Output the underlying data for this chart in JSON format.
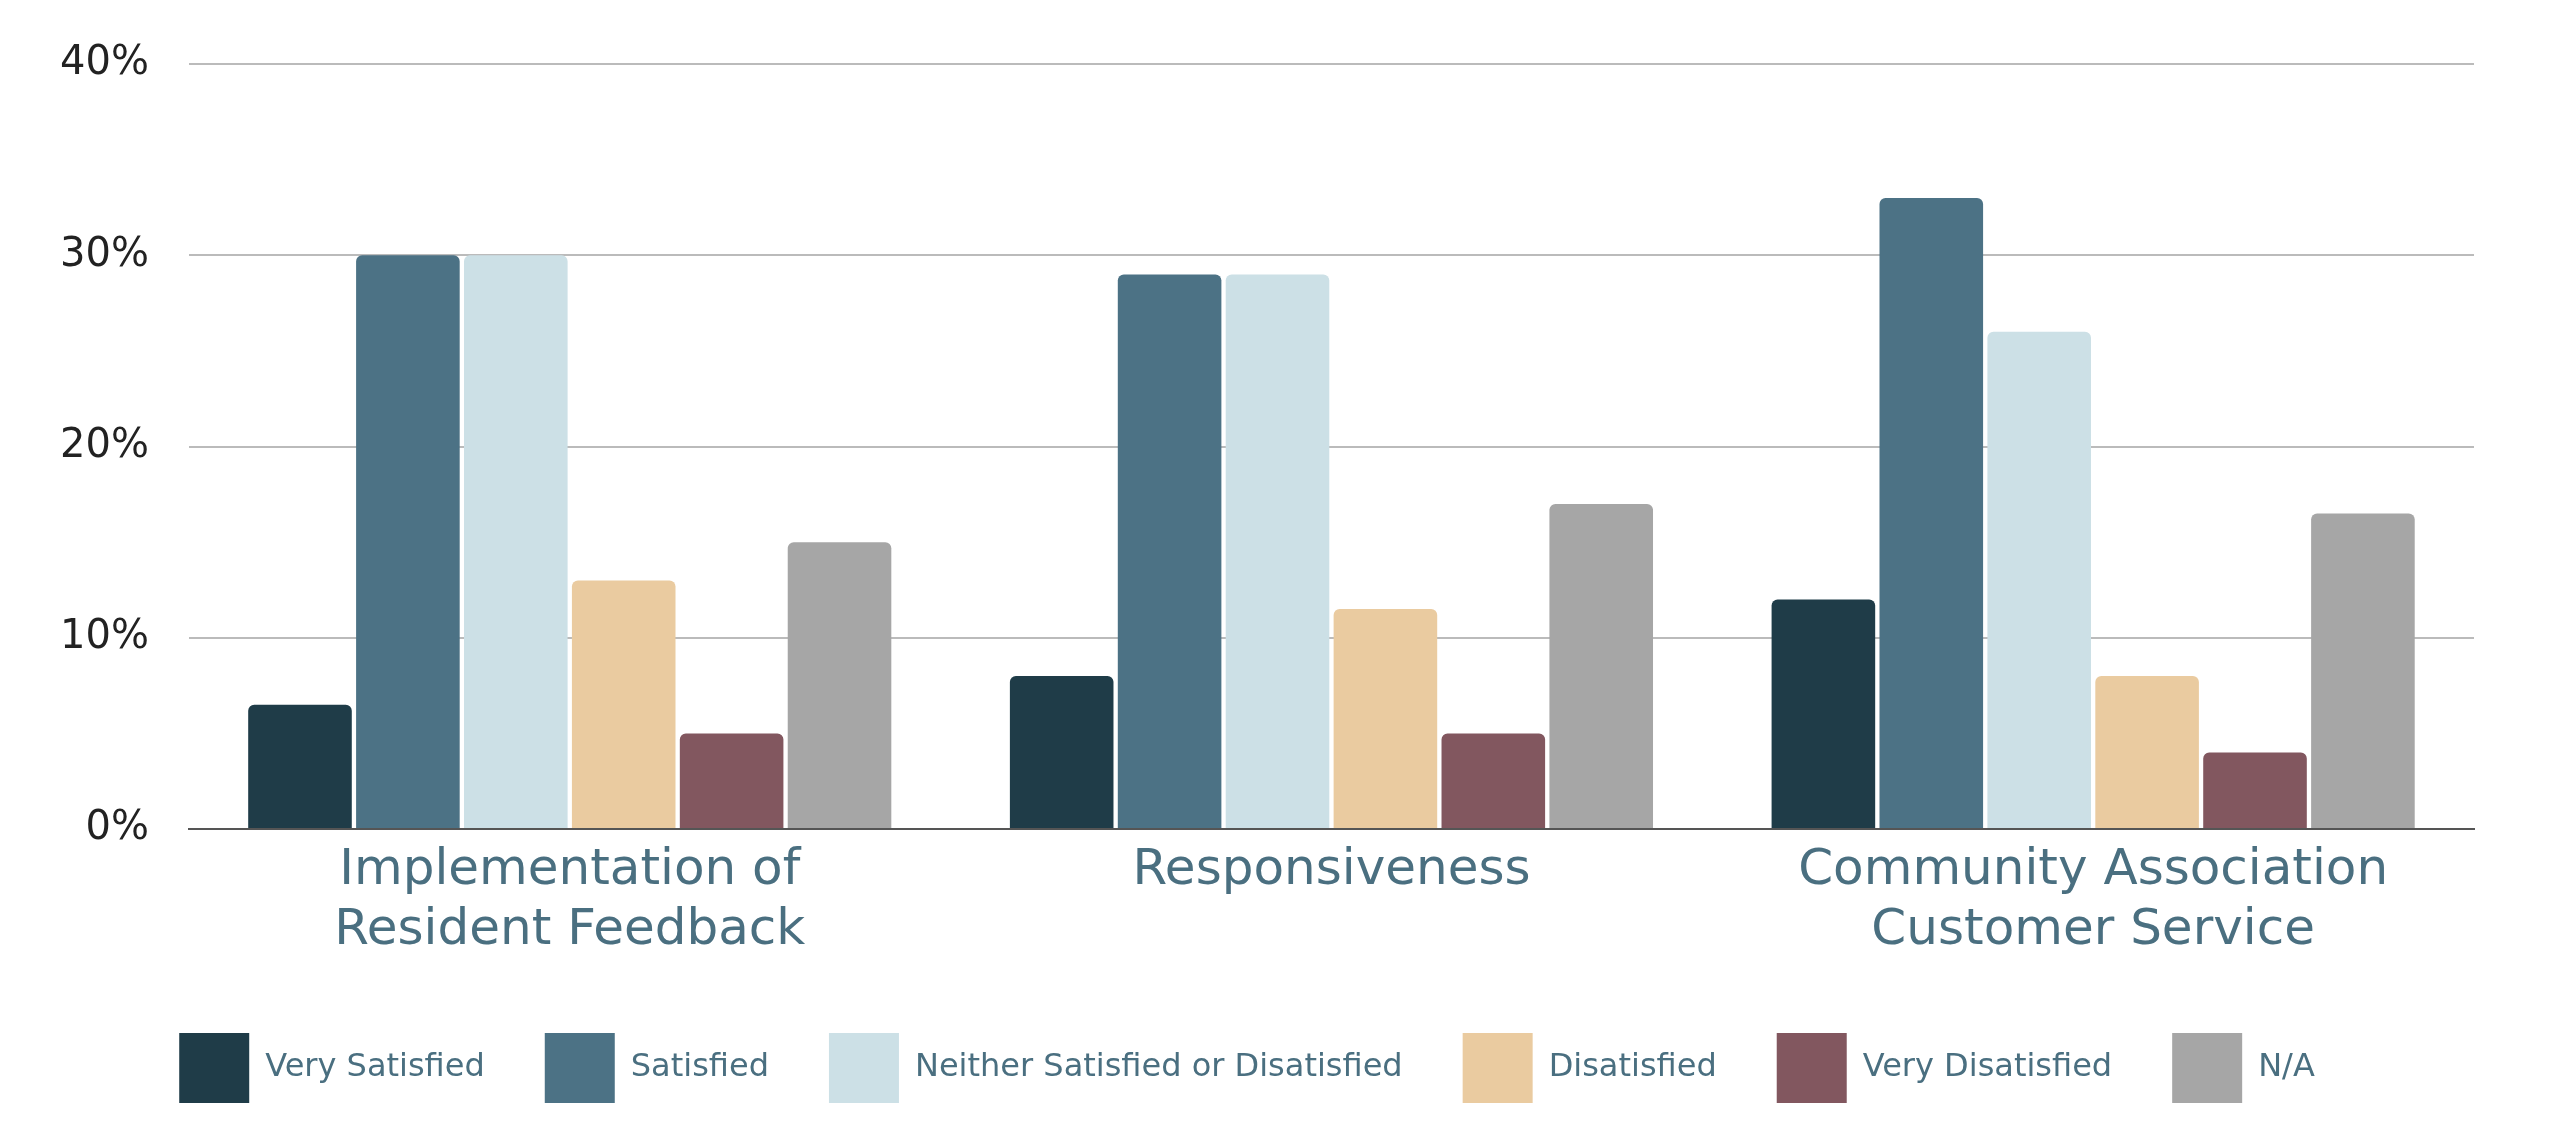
{
  "chart_data": {
    "type": "bar",
    "categories": [
      "Implementation of Resident Feedback",
      "Responsiveness",
      "Community Association Customer Service"
    ],
    "series": [
      {
        "name": "Very Satisfied",
        "color": "#1f3c48",
        "values": [
          6.5,
          8,
          12
        ]
      },
      {
        "name": "Satisfied",
        "color": "#4c7285",
        "values": [
          30,
          29,
          33
        ]
      },
      {
        "name": "Neither Satisfied or Disatisfied",
        "color": "#cce0e6",
        "values": [
          30,
          29,
          26
        ]
      },
      {
        "name": "Disatisfied",
        "color": "#eacba0",
        "values": [
          13,
          11.5,
          8
        ]
      },
      {
        "name": "Very Disatisfied",
        "color": "#82575f",
        "values": [
          5,
          5,
          4
        ]
      },
      {
        "name": "N/A",
        "color": "#a6a6a6",
        "values": [
          15,
          17,
          16.5
        ]
      }
    ],
    "ylim": [
      0,
      40
    ],
    "yticks": [
      {
        "value": 0,
        "label": "0%"
      },
      {
        "value": 10,
        "label": "10%"
      },
      {
        "value": 20,
        "label": "20%"
      },
      {
        "value": 30,
        "label": "30%"
      },
      {
        "value": 40,
        "label": "40%"
      }
    ],
    "grid": "y",
    "legend": "bottom"
  }
}
